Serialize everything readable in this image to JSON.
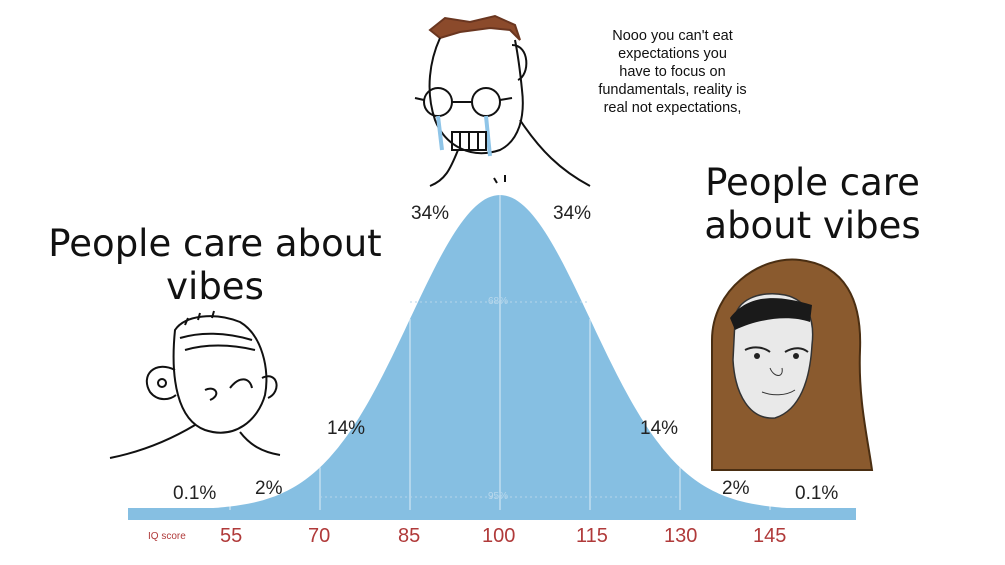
{
  "meme": {
    "left_caption": "People care about vibes",
    "right_caption": "People care about vibes",
    "speech_bubble": [
      "Nooo you can't eat",
      "expectations you",
      "have to focus on",
      "fundamentals, reality is",
      "real not expectations,"
    ]
  },
  "distribution": {
    "percent_labels": {
      "left_tail": "0.1%",
      "left_2": "2%",
      "left_14": "14%",
      "left_34": "34%",
      "right_34": "34%",
      "right_14": "14%",
      "right_2": "2%",
      "right_tail": "0.1%"
    },
    "inner_labels": {
      "band_68": "68%",
      "band_95": "95%"
    },
    "axis_label": "IQ score",
    "ticks": [
      "55",
      "70",
      "85",
      "100",
      "115",
      "130",
      "145"
    ],
    "colors": {
      "curve_fill": "#86bfe2",
      "divider": "#cfe6f4",
      "tick_text": "#b03a3a"
    }
  },
  "characters": [
    "wojak-crying-glasses",
    "brainlet-simple",
    "hooded-sage"
  ]
}
